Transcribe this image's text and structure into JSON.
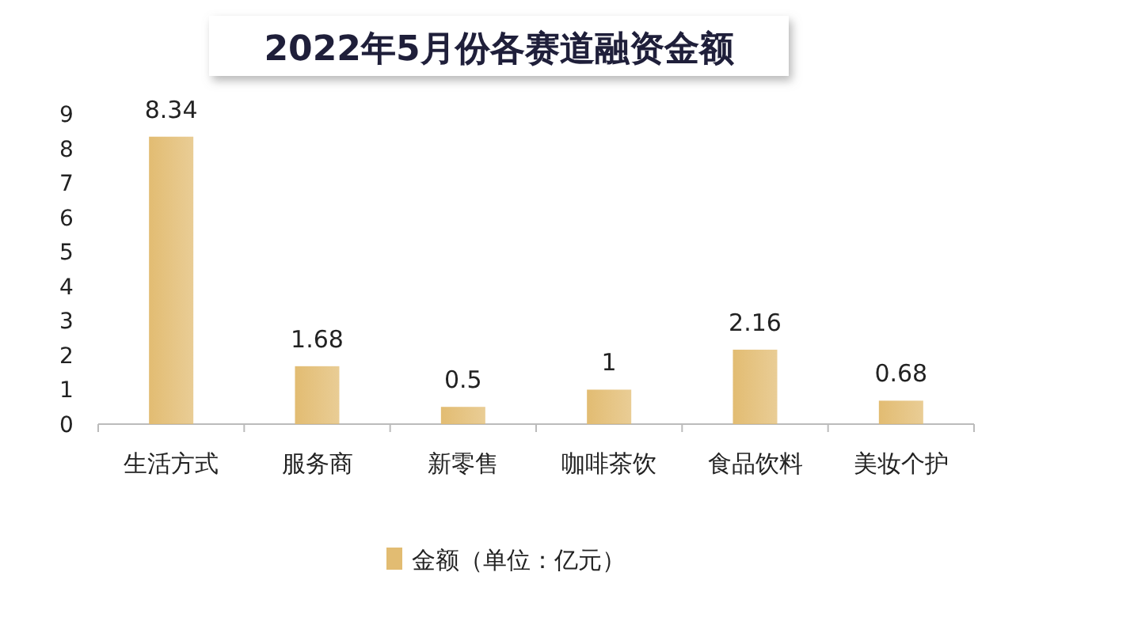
{
  "chart_data": {
    "type": "bar",
    "title": "2022年5月份各赛道融资金额",
    "categories": [
      "生活方式",
      "服务商",
      "新零售",
      "咖啡茶饮",
      "食品饮料",
      "美妆个护"
    ],
    "series": [
      {
        "name": "金额（单位：亿元）",
        "color": "#e2bc72",
        "values": [
          8.34,
          1.68,
          0.5,
          1,
          2.16,
          0.68
        ]
      }
    ],
    "ylim": [
      0,
      9
    ],
    "yticks": [
      0,
      1,
      2,
      3,
      4,
      5,
      6,
      7,
      8,
      9
    ],
    "data_labels": true,
    "legend": "bottom",
    "grid": false
  }
}
